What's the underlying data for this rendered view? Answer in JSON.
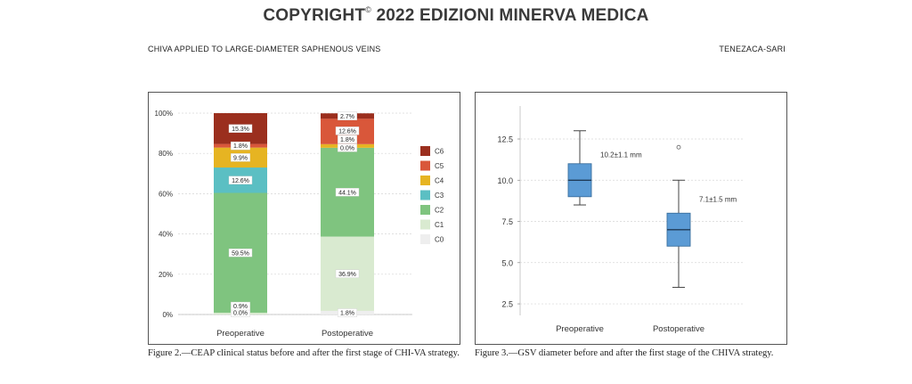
{
  "header": {
    "copyright_prefix": "COPYRIGHT",
    "copyright_symbol": "©",
    "copyright_rest": "2022 EDIZIONI MINERVA MEDICA",
    "running_left": "CHIVA APPLIED TO LARGE-DIAMETER SAPHENOUS VEINS",
    "running_right": "TENEZACA-SARI"
  },
  "captions": {
    "fig2": "Figure 2.—CEAP clinical status before and after the first stage of CHI-VA strategy.",
    "fig3": "Figure 3.—GSV diameter before and after the first stage of the CHIVA strategy."
  },
  "chart_data": [
    {
      "type": "bar",
      "stacked": true,
      "percent": true,
      "categories": [
        "Preoperative",
        "Postoperative"
      ],
      "y_ticks": [
        "0%",
        "20%",
        "40%",
        "60%",
        "80%",
        "100%"
      ],
      "ylim": [
        0,
        100
      ],
      "grid": true,
      "legend_position": "right",
      "series": [
        {
          "name": "C0",
          "color": "#eeeeee",
          "values": [
            0.0,
            1.8
          ],
          "labels": [
            "0.0%",
            "1.8%"
          ]
        },
        {
          "name": "C1",
          "color": "#d9ead0",
          "values": [
            0.9,
            36.9
          ],
          "labels": [
            "0.9%",
            "36.9%"
          ]
        },
        {
          "name": "C2",
          "color": "#7fc47f",
          "values": [
            59.5,
            44.1
          ],
          "labels": [
            "59.5%",
            "44.1%"
          ]
        },
        {
          "name": "C3",
          "color": "#5bbfc3",
          "values": [
            12.6,
            0.0
          ],
          "labels": [
            "12.6%",
            "0.0%"
          ]
        },
        {
          "name": "C4",
          "color": "#e6b422",
          "values": [
            9.9,
            1.8
          ],
          "labels": [
            "9.9%",
            "1.8%"
          ]
        },
        {
          "name": "C5",
          "color": "#d9573a",
          "values": [
            1.8,
            12.6
          ],
          "labels": [
            "1.8%",
            "12.6%"
          ]
        },
        {
          "name": "C6",
          "color": "#9b2f1e",
          "values": [
            15.3,
            2.7
          ],
          "labels": [
            "15.3%",
            "2.7%"
          ]
        }
      ]
    },
    {
      "type": "box",
      "categories": [
        "Preoperative",
        "Postoperative"
      ],
      "y_ticks": [
        "2.5",
        "5.0",
        "7.5",
        "10.0",
        "12.5"
      ],
      "ylim": [
        1.8,
        14.5
      ],
      "grid": true,
      "box_color": "#5b9bd5",
      "boxes": [
        {
          "whisker_low": 8.5,
          "q1": 9.0,
          "median": 10.0,
          "q3": 11.0,
          "whisker_high": 13.0,
          "outliers": [],
          "annotation": "10.2±1.1 mm"
        },
        {
          "whisker_low": 3.5,
          "q1": 6.0,
          "median": 7.0,
          "q3": 8.0,
          "whisker_high": 10.0,
          "outliers": [
            12.0
          ],
          "annotation": "7.1±1.5 mm"
        }
      ]
    }
  ]
}
